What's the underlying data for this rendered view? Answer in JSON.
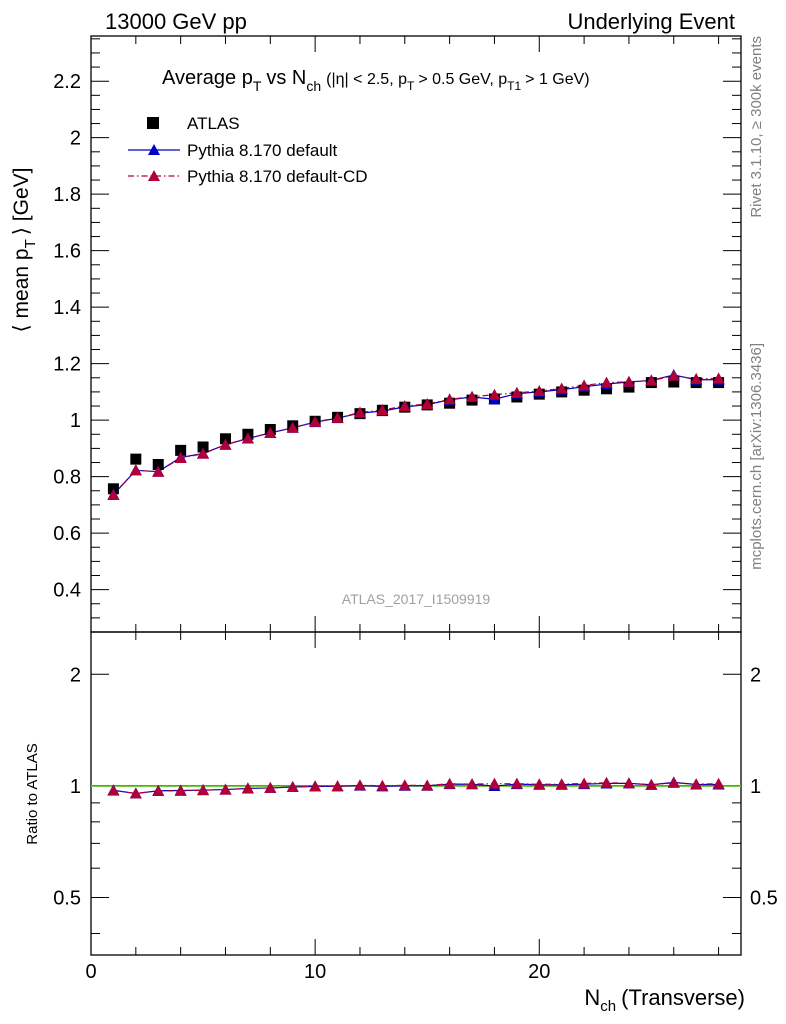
{
  "header": {
    "left": "13000 GeV pp",
    "right": "Underlying Event"
  },
  "side_labels": {
    "rivet": "Rivet 3.1.10, ≥ 300k events",
    "mcplots": "mcplots.cern.ch [arXiv:1306.3436]"
  },
  "chart_data": {
    "type": "scatter",
    "title_main": "Average p",
    "title_sub_t": "T",
    "title_vs": "vs N",
    "title_sub_ch": "ch",
    "title_cuts_1": "(|η| < 2.5, p",
    "title_cuts_2": "> 0.5 GeV, p",
    "title_sub_t1": "T1",
    "title_cuts_3": "> 1 GeV)",
    "watermark": "ATLAS_2017_I1509919",
    "ylabel_main_1": "⟨ mean p",
    "ylabel_main_2": "⟩ [GeV]",
    "ylabel_ratio": "Ratio to ATLAS",
    "xlabel_1": "N",
    "xlabel_sub": "ch",
    "xlabel_2": "(Transverse)",
    "xlim": [
      0,
      29
    ],
    "ylim_main": [
      0.25,
      2.36
    ],
    "ylim_ratio": [
      0.35,
      2.6
    ],
    "x_ticks": [
      "0",
      "10",
      "20"
    ],
    "y_ticks_main": [
      "0.4",
      "0.6",
      "0.8",
      "1",
      "1.2",
      "1.4",
      "1.6",
      "1.8",
      "2",
      "2.2"
    ],
    "y_ticks_ratio": [
      "0.5",
      "1",
      "2"
    ],
    "x": [
      1,
      2,
      3,
      4,
      5,
      6,
      7,
      8,
      9,
      10,
      11,
      12,
      13,
      14,
      15,
      16,
      17,
      18,
      19,
      20,
      21,
      22,
      23,
      24,
      25,
      26,
      27,
      28
    ],
    "series": [
      {
        "name": "ATLAS",
        "color": "#000000",
        "values": [
          0.757,
          0.862,
          0.843,
          0.893,
          0.905,
          0.934,
          0.95,
          0.967,
          0.98,
          0.996,
          1.01,
          1.023,
          1.035,
          1.046,
          1.054,
          1.06,
          1.071,
          1.075,
          1.082,
          1.092,
          1.1,
          1.106,
          1.111,
          1.117,
          1.133,
          1.135,
          1.133,
          1.133
        ]
      },
      {
        "name": "Pythia 8.170 default",
        "color": "#0000cc",
        "values": [
          0.737,
          0.822,
          0.818,
          0.868,
          0.882,
          0.913,
          0.935,
          0.955,
          0.973,
          0.993,
          1.007,
          1.025,
          1.032,
          1.047,
          1.055,
          1.072,
          1.082,
          1.074,
          1.094,
          1.1,
          1.108,
          1.118,
          1.128,
          1.135,
          1.141,
          1.16,
          1.143,
          1.143
        ]
      },
      {
        "name": "Pythia 8.170 default-CD",
        "color": "#b0003a",
        "values": [
          0.735,
          0.823,
          0.817,
          0.866,
          0.881,
          0.913,
          0.936,
          0.955,
          0.973,
          0.994,
          1.008,
          1.027,
          1.036,
          1.05,
          1.057,
          1.074,
          1.083,
          1.09,
          1.097,
          1.103,
          1.112,
          1.123,
          1.133,
          1.136,
          1.14,
          1.157,
          1.146,
          1.148
        ]
      }
    ]
  }
}
